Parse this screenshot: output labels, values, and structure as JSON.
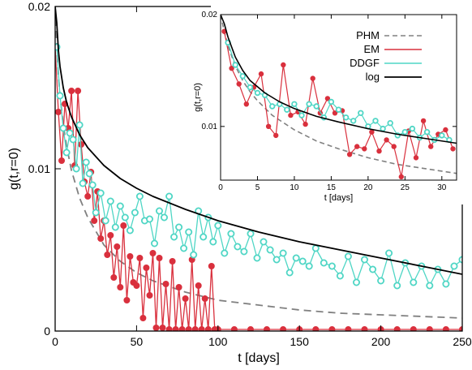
{
  "chart_data": [
    {
      "type": "line",
      "panel": "main",
      "xlabel": "t [days]",
      "ylabel": "g(t,r=0)",
      "xlim": [
        0,
        250
      ],
      "ylim": [
        0,
        0.02
      ],
      "x_ticks": [
        0,
        50,
        100,
        150,
        200,
        250
      ],
      "y_ticks": [
        0,
        0.01,
        0.02
      ],
      "x_tick_labels": [
        "0",
        "50",
        "100",
        "150",
        "200",
        "250"
      ],
      "y_tick_labels": [
        "0",
        "0.01",
        "0.02"
      ],
      "grid": false,
      "series": [
        {
          "name": "PHM",
          "color": "#808080",
          "style": "dashed",
          "markers": false,
          "x": [
            0,
            1,
            2,
            3,
            5,
            7,
            10,
            15,
            20,
            30,
            40,
            50,
            60,
            80,
            100,
            125,
            150,
            175,
            200,
            225,
            250
          ],
          "y": [
            0.02,
            0.0175,
            0.0158,
            0.0145,
            0.0127,
            0.0114,
            0.0099,
            0.0082,
            0.007,
            0.0053,
            0.0043,
            0.0036,
            0.0031,
            0.0024,
            0.0019,
            0.0016,
            0.0013,
            0.0011,
            0.001,
            0.0009,
            0.0008
          ]
        },
        {
          "name": "EM",
          "color": "#d9303d",
          "style": "solid",
          "markers": true,
          "x": [
            0,
            2,
            4,
            6,
            8,
            10,
            12,
            14,
            16,
            18,
            20,
            22,
            24,
            26,
            28,
            30,
            32,
            34,
            36,
            38,
            40,
            42,
            44,
            46,
            48,
            50,
            52,
            54,
            56,
            58,
            60,
            62,
            64,
            66,
            68,
            70,
            72,
            74,
            76,
            78,
            80,
            82,
            84,
            86,
            88,
            90,
            92,
            94,
            96,
            98,
            100,
            110,
            120,
            130,
            140,
            150,
            160,
            170,
            180,
            190,
            200,
            210,
            220,
            230,
            240,
            250
          ],
          "y": [
            0.0175,
            0.0135,
            0.0105,
            0.014,
            0.0125,
            0.0148,
            0.0102,
            0.0148,
            0.0115,
            0.0092,
            0.0083,
            0.0098,
            0.0068,
            0.0086,
            0.0057,
            0.0068,
            0.0047,
            0.0059,
            0.0033,
            0.0052,
            0.0027,
            0.0065,
            0.0019,
            0.0046,
            0.003,
            0.0028,
            0.0045,
            0.0008,
            0.0039,
            0.0022,
            0.0048,
            0.0002,
            0.0045,
            0.0002,
            0.0029,
            0.0001,
            0.0043,
            0.0001,
            0.0027,
            0.0001,
            0.002,
            0.0001,
            0.0044,
            0.0001,
            0.0028,
            0.0001,
            0.002,
            0.0001,
            0.004,
            0.0001,
            0.0001,
            0.0001,
            0.0001,
            0.0001,
            0.0001,
            0.0001,
            0.0001,
            0.0001,
            0.0001,
            0.0001,
            0.0001,
            0.0001,
            0.0001,
            0.0001,
            0.0001,
            0.0001
          ]
        },
        {
          "name": "DDGF",
          "color": "#4fd6c5",
          "style": "solid",
          "markers": true,
          "x": [
            1,
            3,
            5,
            7,
            9,
            11,
            13,
            15,
            17,
            19,
            21,
            23,
            25,
            28,
            31,
            34,
            37,
            40,
            43,
            46,
            49,
            52,
            55,
            58,
            61,
            64,
            67,
            70,
            73,
            76,
            79,
            82,
            85,
            88,
            91,
            94,
            97,
            100,
            104,
            108,
            112,
            116,
            120,
            124,
            128,
            132,
            136,
            140,
            144,
            148,
            152,
            156,
            160,
            165,
            170,
            175,
            180,
            185,
            190,
            195,
            200,
            205,
            210,
            215,
            220,
            225,
            230,
            235,
            240,
            245,
            250
          ],
          "y": [
            0.0175,
            0.0145,
            0.0125,
            0.011,
            0.0122,
            0.0118,
            0.01,
            0.0127,
            0.0091,
            0.0104,
            0.0097,
            0.009,
            0.0073,
            0.0085,
            0.0068,
            0.008,
            0.0064,
            0.0077,
            0.007,
            0.0062,
            0.0073,
            0.0083,
            0.0068,
            0.0069,
            0.0054,
            0.0074,
            0.007,
            0.0083,
            0.0058,
            0.0064,
            0.0051,
            0.0061,
            0.0047,
            0.0074,
            0.0058,
            0.007,
            0.0055,
            0.0065,
            0.0048,
            0.006,
            0.0052,
            0.0049,
            0.006,
            0.0045,
            0.0055,
            0.005,
            0.0044,
            0.0048,
            0.0036,
            0.0045,
            0.0043,
            0.004,
            0.0051,
            0.0042,
            0.004,
            0.0034,
            0.0046,
            0.003,
            0.0044,
            0.0038,
            0.0031,
            0.0048,
            0.0028,
            0.0042,
            0.003,
            0.004,
            0.0028,
            0.0038,
            0.0029,
            0.004,
            0.0044
          ]
        },
        {
          "name": "log",
          "color": "#000000",
          "style": "solid",
          "markers": false,
          "x": [
            0,
            1,
            2,
            3,
            5,
            7,
            10,
            15,
            20,
            30,
            40,
            50,
            60,
            80,
            100,
            125,
            150,
            175,
            200,
            225,
            250
          ],
          "y": [
            0.02,
            0.019,
            0.0173,
            0.0163,
            0.015,
            0.0141,
            0.0132,
            0.0121,
            0.0113,
            0.0102,
            0.0094,
            0.0088,
            0.0083,
            0.0075,
            0.0068,
            0.0061,
            0.0055,
            0.005,
            0.0045,
            0.004,
            0.0035
          ]
        }
      ]
    },
    {
      "type": "line",
      "panel": "inset",
      "xlabel": "t [days]",
      "ylabel": "g(t,r=0)",
      "xlim": [
        0,
        32
      ],
      "ylim": [
        0.0052,
        0.02
      ],
      "x_ticks": [
        0,
        5,
        10,
        15,
        20,
        25,
        30
      ],
      "y_ticks": [
        0.01,
        0.02
      ],
      "x_tick_labels": [
        "0",
        "5",
        "10",
        "15",
        "20",
        "25",
        "30"
      ],
      "y_tick_labels": [
        "0.01",
        "0.02"
      ],
      "legend": {
        "position": "top-left",
        "entries": [
          "PHM",
          "EM",
          "DDGF",
          "log"
        ]
      },
      "series": [
        {
          "name": "PHM",
          "color": "#808080",
          "style": "dashed",
          "markers": false,
          "x": [
            0,
            0.5,
            1,
            2,
            3,
            4,
            5,
            7,
            10,
            13,
            16,
            20,
            24,
            28,
            32
          ],
          "y": [
            0.02,
            0.0185,
            0.0172,
            0.0154,
            0.0141,
            0.0131,
            0.0123,
            0.011,
            0.0097,
            0.0087,
            0.008,
            0.0072,
            0.0066,
            0.0062,
            0.0058
          ]
        },
        {
          "name": "EM",
          "color": "#d9303d",
          "style": "solid",
          "markers": true,
          "x": [
            0.5,
            1.5,
            2.5,
            3.5,
            4.5,
            5.5,
            6.5,
            7.5,
            8.5,
            9.5,
            10.5,
            11.5,
            12.5,
            13.5,
            14.5,
            15.5,
            16.5,
            17.5,
            18.5,
            19.5,
            20.5,
            21.5,
            22.5,
            23.5,
            24.5,
            25.5,
            26.5,
            27.5,
            28.5,
            29.5,
            30.5,
            31.5
          ],
          "y": [
            0.0185,
            0.0152,
            0.0138,
            0.012,
            0.0135,
            0.0147,
            0.01,
            0.0092,
            0.0155,
            0.011,
            0.0113,
            0.0102,
            0.0143,
            0.0112,
            0.0125,
            0.0112,
            0.0114,
            0.0075,
            0.0082,
            0.008,
            0.0095,
            0.0078,
            0.0088,
            0.0082,
            0.0055,
            0.0096,
            0.0072,
            0.0105,
            0.0082,
            0.0093,
            0.0097,
            0.008
          ]
        },
        {
          "name": "DDGF",
          "color": "#4fd6c5",
          "style": "solid",
          "markers": true,
          "x": [
            1,
            2,
            3,
            4,
            5,
            6,
            7,
            8,
            9,
            10,
            11,
            12,
            13,
            14,
            15,
            16,
            17,
            18,
            19,
            20,
            21,
            22,
            23,
            24,
            25,
            26,
            27,
            28,
            29,
            30,
            31
          ],
          "y": [
            0.0175,
            0.0155,
            0.0145,
            0.0135,
            0.013,
            0.0128,
            0.0118,
            0.012,
            0.0115,
            0.012,
            0.011,
            0.012,
            0.0118,
            0.0108,
            0.0122,
            0.0115,
            0.0108,
            0.0105,
            0.0112,
            0.01,
            0.0105,
            0.0098,
            0.0103,
            0.0092,
            0.0095,
            0.0098,
            0.009,
            0.0095,
            0.0088,
            0.0092,
            0.0088
          ]
        },
        {
          "name": "log",
          "color": "#000000",
          "style": "solid",
          "markers": false,
          "x": [
            0,
            0.5,
            1,
            2,
            3,
            4,
            6,
            8,
            10,
            13,
            16,
            20,
            24,
            28,
            32
          ],
          "y": [
            0.02,
            0.0192,
            0.018,
            0.0162,
            0.015,
            0.0141,
            0.013,
            0.0122,
            0.0116,
            0.0109,
            0.0104,
            0.0098,
            0.0093,
            0.0089,
            0.0085
          ]
        }
      ]
    }
  ]
}
